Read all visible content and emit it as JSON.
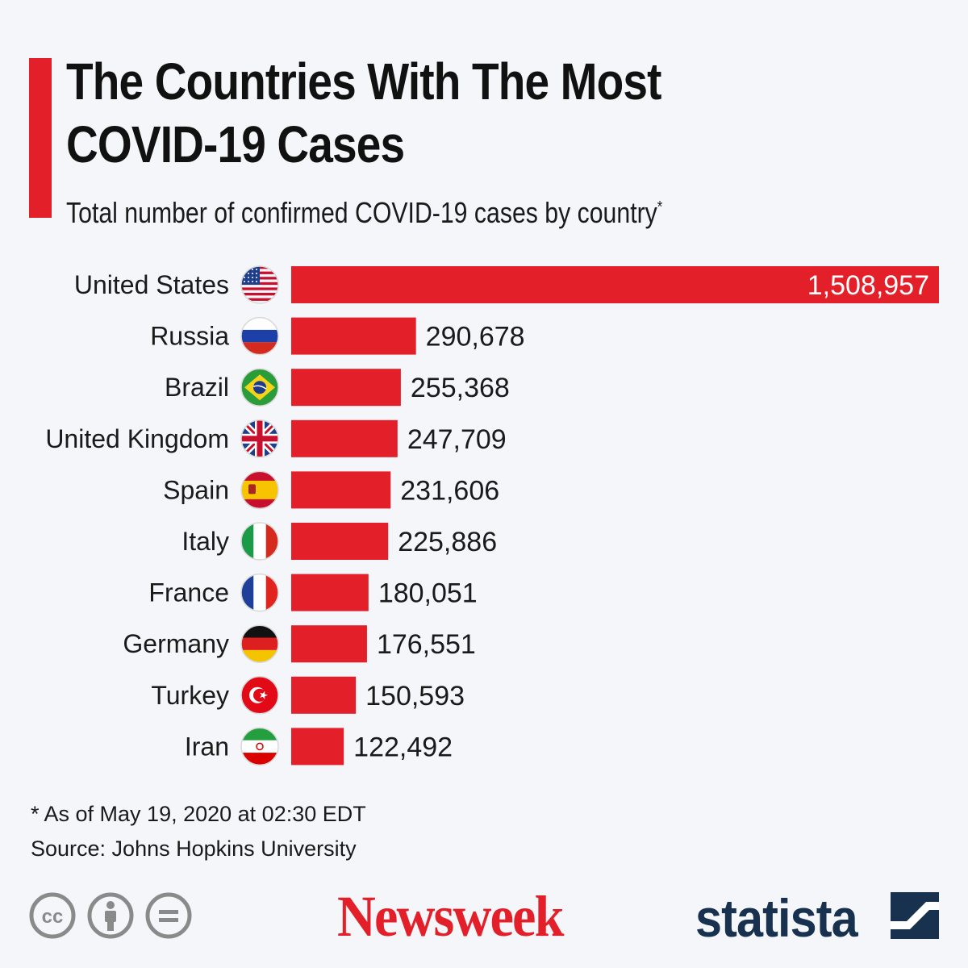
{
  "header": {
    "title_line1": "The Countries With The Most",
    "title_line2": "COVID-19 Cases",
    "subtitle": "Total number of confirmed COVID-19 cases by country",
    "subtitle_mark": "*",
    "accent_color": "#e3202a"
  },
  "chart_data": {
    "type": "bar",
    "orientation": "horizontal",
    "categories": [
      "United States",
      "Russia",
      "Brazil",
      "United Kingdom",
      "Spain",
      "Italy",
      "France",
      "Germany",
      "Turkey",
      "Iran"
    ],
    "values": [
      1508957,
      290678,
      255368,
      247709,
      231606,
      225886,
      180051,
      176551,
      150593,
      122492
    ],
    "value_labels": [
      "1,508,957",
      "290,678",
      "255,368",
      "247,709",
      "231,606",
      "225,886",
      "180,051",
      "176,551",
      "150,593",
      "122,492"
    ],
    "flags": [
      "us-flag-icon",
      "russia-flag-icon",
      "brazil-flag-icon",
      "uk-flag-icon",
      "spain-flag-icon",
      "italy-flag-icon",
      "france-flag-icon",
      "germany-flag-icon",
      "turkey-flag-icon",
      "iran-flag-icon"
    ],
    "bar_color": "#e3202a",
    "xlim": [
      0,
      1508957
    ],
    "grid": false,
    "legend": "none"
  },
  "footer": {
    "footnote": "* As of May 19, 2020 at 02:30 EDT",
    "source": "Source: Johns Hopkins University",
    "cc_icons": [
      "cc-icon",
      "attribution-icon",
      "no-derivatives-icon"
    ],
    "newsweek": "Newsweek",
    "statista": "statista",
    "newsweek_color": "#e3202a",
    "statista_color": "#17314f"
  }
}
